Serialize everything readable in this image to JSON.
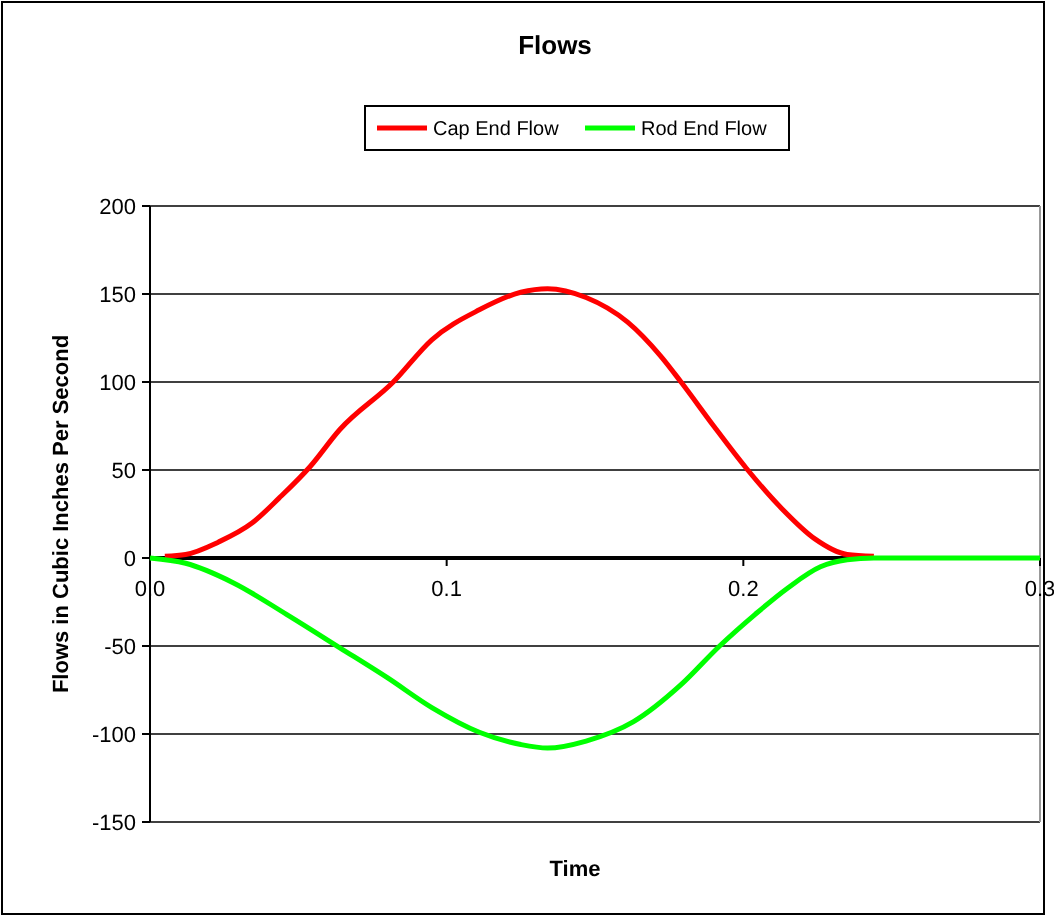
{
  "chart_data": {
    "type": "line",
    "title": "Flows",
    "xlabel": "Time",
    "ylabel": "Flows in Cubic Inches Per Second",
    "xlim": [
      0,
      0.3
    ],
    "xticks": [
      {
        "value": 0,
        "label": "0.0"
      },
      0.1,
      0.2,
      0.3
    ],
    "ylim": [
      -150,
      200
    ],
    "yticks": [
      -150,
      -100,
      -50,
      0,
      50,
      100,
      150,
      200
    ],
    "grid": "y",
    "legend": "top",
    "marker": "none",
    "line_style": "solid",
    "series": [
      {
        "name": "Cap End Flow",
        "color": "#ff0000",
        "x": [
          0.005,
          0.012,
          0.023,
          0.0345,
          0.0435,
          0.054,
          0.064,
          0.082,
          0.095,
          0.111,
          0.125,
          0.134,
          0.147,
          0.161,
          0.172,
          0.179,
          0.19,
          0.201,
          0.213,
          0.224,
          0.235,
          0.244
        ],
        "values": [
          1,
          2,
          9,
          20,
          34,
          52,
          73,
          100,
          124,
          141,
          151,
          153,
          148,
          134,
          115,
          100,
          75,
          51,
          28,
          11,
          2,
          1
        ]
      },
      {
        "name": "Rod End Flow",
        "color": "#00ff00",
        "x": [
          0,
          0.012,
          0.028,
          0.046,
          0.064,
          0.08,
          0.095,
          0.111,
          0.125,
          0.134,
          0.147,
          0.163,
          0.179,
          0.192,
          0.204,
          0.215,
          0.226,
          0.235,
          0.244,
          0.3
        ],
        "values": [
          0,
          -3,
          -14,
          -32,
          -51,
          -68,
          -85,
          -99,
          -106,
          -108,
          -104,
          -93,
          -72,
          -50,
          -32,
          -17,
          -5,
          -1,
          0,
          0
        ]
      }
    ]
  }
}
